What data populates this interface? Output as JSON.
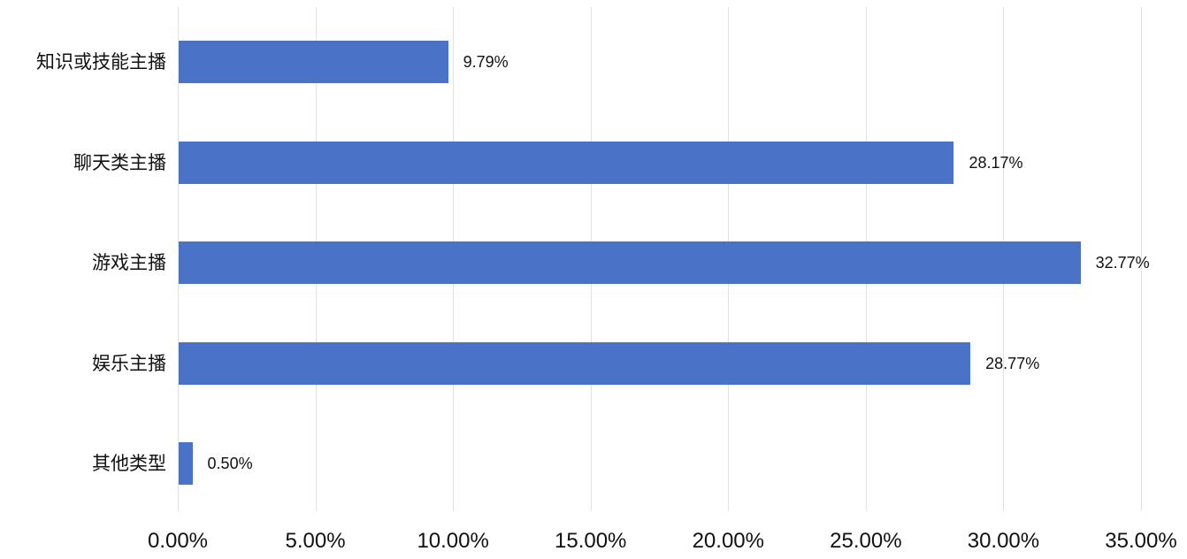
{
  "chart_data": {
    "type": "bar",
    "orientation": "horizontal",
    "title": "",
    "xlabel": "",
    "ylabel": "",
    "categories": [
      "知识或技能主播",
      "聊天类主播",
      "游戏主播",
      "娱乐主播",
      "其他类型"
    ],
    "values": [
      9.79,
      28.17,
      32.77,
      28.77,
      0.5
    ],
    "value_labels": [
      "9.79%",
      "28.17%",
      "32.77%",
      "28.77%",
      "0.50%"
    ],
    "x_ticks": [
      "0.00%",
      "5.00%",
      "10.00%",
      "15.00%",
      "20.00%",
      "25.00%",
      "30.00%",
      "35.00%"
    ],
    "x_tick_values": [
      0,
      5,
      10,
      15,
      20,
      25,
      30,
      35
    ],
    "xlim": [
      0,
      35
    ],
    "grid": "vertical",
    "legend": "none",
    "colors": {
      "bar": "#4a73c8",
      "gridline": "#e2e2e2",
      "text": "#111111",
      "background": "#ffffff"
    }
  }
}
